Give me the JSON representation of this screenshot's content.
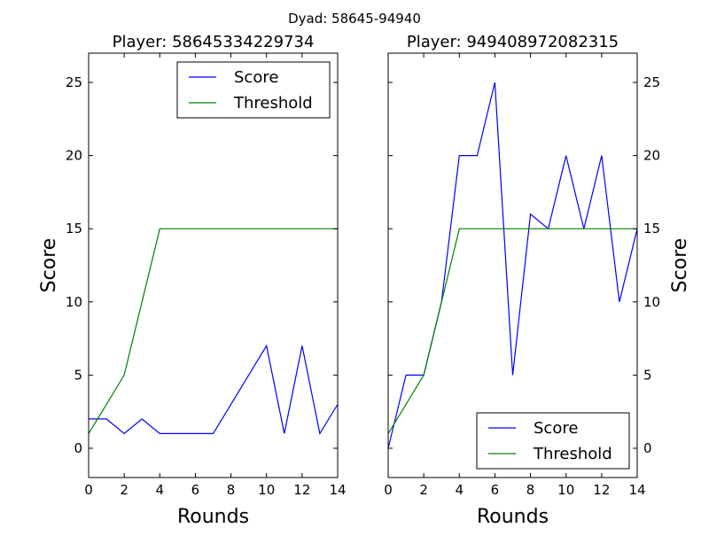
{
  "figure": {
    "suptitle": "Dyad: 58645-94940"
  },
  "chart_data": [
    {
      "type": "line",
      "title": "Player: 58645334229734",
      "xlabel": "Rounds",
      "ylabel": "Score",
      "xlim": [
        0,
        14
      ],
      "ylim": [
        -2,
        27
      ],
      "xticks": [
        0,
        2,
        4,
        6,
        8,
        10,
        12,
        14
      ],
      "yticks": [
        0,
        5,
        10,
        15,
        20,
        25
      ],
      "ylabel_side": "left",
      "legend_position": "upper right",
      "series": [
        {
          "name": "Score",
          "color": "#0000ff",
          "x": [
            0,
            1,
            2,
            3,
            4,
            5,
            6,
            7,
            8,
            9,
            10,
            11,
            12,
            13,
            14
          ],
          "y": [
            2,
            2,
            1,
            2,
            1,
            1,
            1,
            1,
            3,
            5,
            7,
            1,
            7,
            1,
            3
          ]
        },
        {
          "name": "Threshold",
          "color": "#008000",
          "x": [
            0,
            1,
            2,
            3,
            4,
            5,
            6,
            7,
            8,
            9,
            10,
            11,
            12,
            13,
            14
          ],
          "y": [
            1,
            3,
            5,
            10,
            15,
            15,
            15,
            15,
            15,
            15,
            15,
            15,
            15,
            15,
            15
          ]
        }
      ]
    },
    {
      "type": "line",
      "title": "Player: 949408972082315",
      "xlabel": "Rounds",
      "ylabel": "Score",
      "xlim": [
        0,
        14
      ],
      "ylim": [
        -2,
        27
      ],
      "xticks": [
        0,
        2,
        4,
        6,
        8,
        10,
        12,
        14
      ],
      "yticks": [
        0,
        5,
        10,
        15,
        20,
        25
      ],
      "ylabel_side": "right",
      "legend_position": "lower right",
      "series": [
        {
          "name": "Score",
          "color": "#0000ff",
          "x": [
            0,
            1,
            2,
            3,
            4,
            5,
            6,
            7,
            8,
            9,
            10,
            11,
            12,
            13,
            14
          ],
          "y": [
            0,
            5,
            5,
            10,
            20,
            20,
            25,
            5,
            16,
            15,
            20,
            15,
            20,
            10,
            15
          ]
        },
        {
          "name": "Threshold",
          "color": "#008000",
          "x": [
            0,
            1,
            2,
            3,
            4,
            5,
            6,
            7,
            8,
            9,
            10,
            11,
            12,
            13,
            14
          ],
          "y": [
            1,
            3,
            5,
            10,
            15,
            15,
            15,
            15,
            15,
            15,
            15,
            15,
            15,
            15,
            15
          ]
        }
      ]
    }
  ]
}
